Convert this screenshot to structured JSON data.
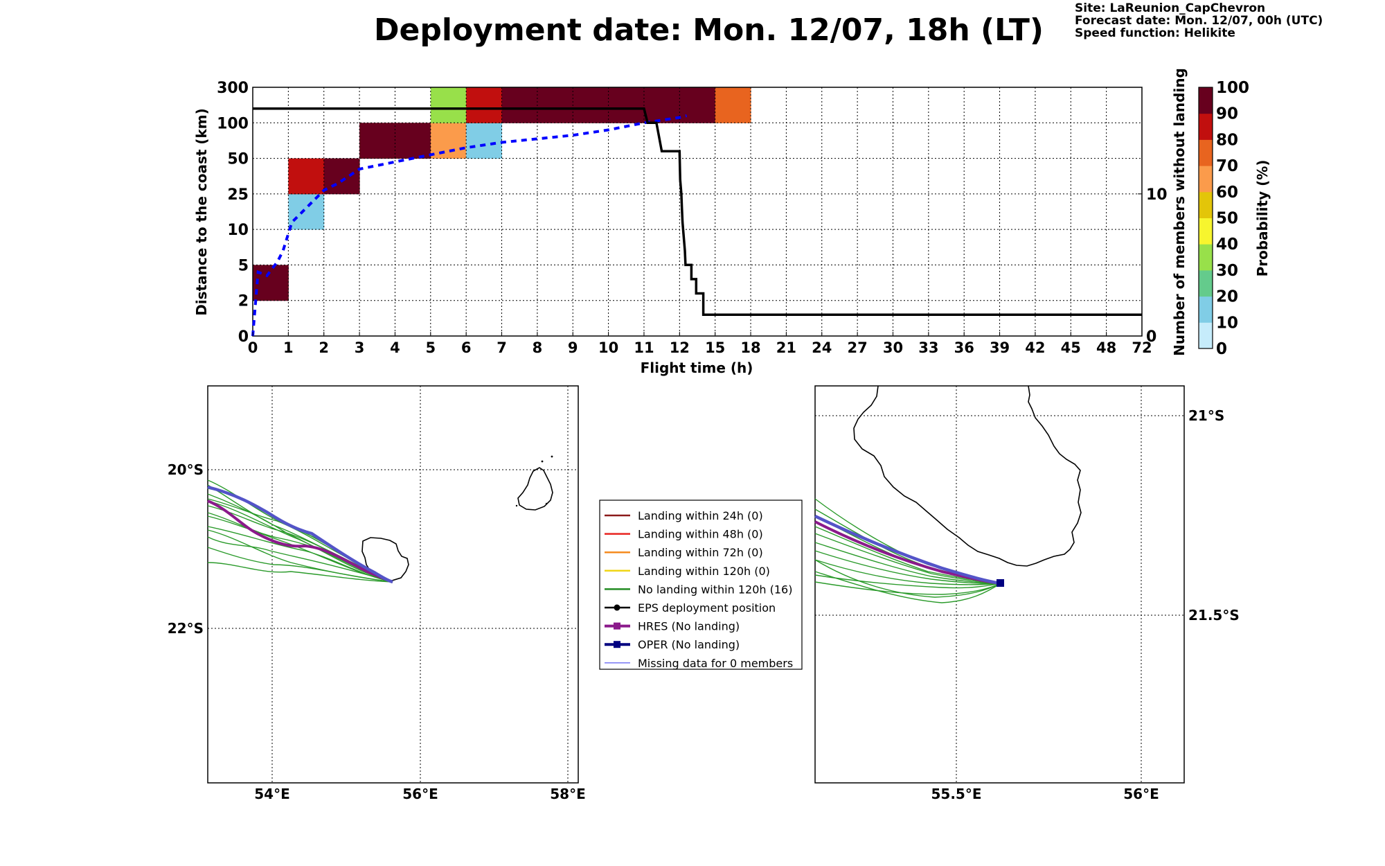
{
  "header": {
    "title": "Deployment date: Mon. 12/07, 18h (LT)",
    "site": "Site: LaReunion_CapChevron",
    "forecast_date": "Forecast date: Mon. 12/07, 00h (UTC)",
    "speed_function": "Speed function: Helikite"
  },
  "chart_data": [
    {
      "type": "heatmap",
      "xlabel": "Flight time (h)",
      "ylabel": "Distance to the coast (km)",
      "y2label": "Number of members without landing",
      "x_ticks": [
        "0",
        "1",
        "2",
        "3",
        "4",
        "5",
        "6",
        "7",
        "8",
        "9",
        "10",
        "11",
        "12",
        "15",
        "18",
        "21",
        "24",
        "27",
        "30",
        "33",
        "36",
        "39",
        "42",
        "45",
        "48",
        "72"
      ],
      "y_ticks": [
        "0",
        "2",
        "5",
        "10",
        "25",
        "50",
        "100",
        "300"
      ],
      "y2_ticks": [
        "0",
        "10"
      ],
      "y2lim": [
        0,
        17.5
      ],
      "colorbar": {
        "label": "Probability (%)",
        "ticks": [
          "0",
          "10",
          "20",
          "30",
          "40",
          "50",
          "60",
          "70",
          "80",
          "90",
          "100"
        ],
        "colors": [
          "#c6ecfb",
          "#80cde6",
          "#64cb8c",
          "#98e04a",
          "#f7f52e",
          "#e3c509",
          "#fb9b4b",
          "#e8641f",
          "#c10f0e",
          "#67001e"
        ]
      },
      "cells": [
        {
          "x": 0,
          "y": 1,
          "color": "#67001e",
          "prob": "90-100"
        },
        {
          "x": 1,
          "y": 3,
          "color": "#80cde6",
          "prob": "10-20"
        },
        {
          "x": 1,
          "y": 4,
          "color": "#c10f0e",
          "prob": "80-90"
        },
        {
          "x": 2,
          "y": 4,
          "color": "#67001e",
          "prob": "90-100"
        },
        {
          "x": 3,
          "y": 5,
          "color": "#67001e",
          "prob": "90-100"
        },
        {
          "x": 4,
          "y": 5,
          "color": "#67001e",
          "prob": "90-100"
        },
        {
          "x": 5,
          "y": 5,
          "color": "#fb9b4b",
          "prob": "60-70"
        },
        {
          "x": 5,
          "y": 6,
          "color": "#98e04a",
          "prob": "30-40"
        },
        {
          "x": 6,
          "y": 5,
          "color": "#80cde6",
          "prob": "10-20"
        },
        {
          "x": 6,
          "y": 6,
          "color": "#c10f0e",
          "prob": "80-90"
        },
        {
          "x": 7,
          "y": 6,
          "color": "#67001e",
          "prob": "90-100"
        },
        {
          "x": 8,
          "y": 6,
          "color": "#67001e",
          "prob": "90-100"
        },
        {
          "x": 9,
          "y": 6,
          "color": "#67001e",
          "prob": "90-100"
        },
        {
          "x": 10,
          "y": 6,
          "color": "#67001e",
          "prob": "90-100"
        },
        {
          "x": 11,
          "y": 6,
          "color": "#67001e",
          "prob": "90-100"
        },
        {
          "x": 12,
          "y": 6,
          "color": "#67001e",
          "prob": "90-100"
        },
        {
          "x": 13,
          "y": 6,
          "color": "#e8641f",
          "prob": "70-80"
        }
      ],
      "series": [
        {
          "style": "blue-dashed",
          "points": [
            [
              0,
              0
            ],
            [
              0.15,
              1.8
            ],
            [
              0.4,
              1.7
            ],
            [
              0.7,
              2.1
            ],
            [
              0.85,
              2.4
            ],
            [
              1.1,
              3.2
            ],
            [
              1.3,
              3.4
            ],
            [
              1.6,
              3.7
            ],
            [
              2,
              4.1
            ],
            [
              2.4,
              4.3
            ],
            [
              3,
              4.7
            ],
            [
              4,
              4.9
            ],
            [
              5,
              5.1
            ],
            [
              6,
              5.3
            ],
            [
              7,
              5.45
            ],
            [
              8,
              5.55
            ],
            [
              9,
              5.65
            ],
            [
              10,
              5.8
            ],
            [
              11,
              6.0
            ],
            [
              12,
              6.15
            ],
            [
              12.2,
              6.2
            ]
          ]
        },
        {
          "style": "black-solid-right-axis",
          "points": [
            [
              0,
              16
            ],
            [
              11,
              16
            ],
            [
              11.1,
              15
            ],
            [
              11.35,
              15
            ],
            [
              11.5,
              13
            ],
            [
              12,
              13
            ],
            [
              12.05,
              11
            ],
            [
              12.15,
              10
            ],
            [
              12.2,
              9
            ],
            [
              12.25,
              8
            ],
            [
              12.35,
              7
            ],
            [
              12.45,
              6
            ],
            [
              12.5,
              5
            ],
            [
              13,
              5
            ],
            [
              13,
              4
            ],
            [
              13.4,
              4
            ],
            [
              13.4,
              3
            ],
            [
              14,
              3
            ],
            [
              14,
              1.5
            ],
            [
              72,
              1.5
            ]
          ]
        }
      ]
    }
  ],
  "map_left": {
    "lon_ticks": [
      "54°E",
      "56°E",
      "58°E"
    ],
    "lat_ticks": [
      "20°S",
      "22°S"
    ]
  },
  "map_right": {
    "lon_ticks": [
      "55.5°E",
      "56°E"
    ],
    "lat_ticks": [
      "21°S",
      "21.5°S"
    ]
  },
  "legend": [
    {
      "label": "Landing within 24h (0)",
      "color": "#8b1a1a",
      "kind": "line"
    },
    {
      "label": "Landing within 48h (0)",
      "color": "#e8231f",
      "kind": "line"
    },
    {
      "label": "Landing within 72h (0)",
      "color": "#f58b1f",
      "kind": "line"
    },
    {
      "label": "Landing within 120h (0)",
      "color": "#f0d515",
      "kind": "line"
    },
    {
      "label": "No landing within 120h (16)",
      "color": "#228b22",
      "kind": "line"
    },
    {
      "label": "EPS deployment position",
      "color": "#000000",
      "kind": "dot"
    },
    {
      "label": "HRES (No landing)",
      "color": "#8b1a8b",
      "kind": "square"
    },
    {
      "label": "OPER (No landing)",
      "color": "#000080",
      "kind": "square"
    },
    {
      "label": "Missing data for 0 members",
      "color": "#4a4af0",
      "kind": "thin"
    }
  ]
}
